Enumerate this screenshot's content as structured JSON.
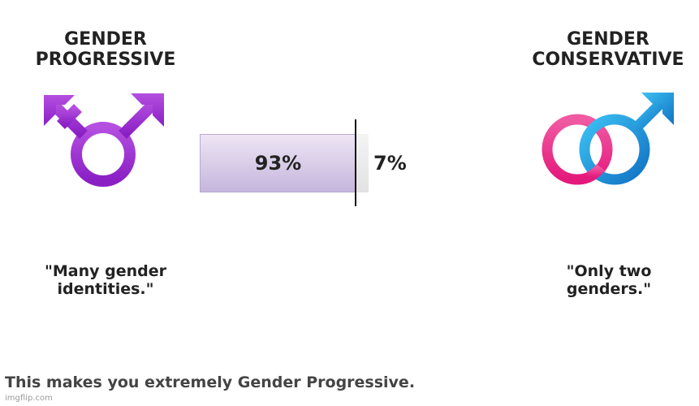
{
  "left": {
    "heading": "GENDER\nPROGRESSIVE",
    "heading_line1": "GENDER",
    "heading_line2": "PROGRESSIVE",
    "quote_line1": "\"Many gender",
    "quote_line2": "identities.\"",
    "icon": "transgender-symbol-icon",
    "color": "#9c2bd0"
  },
  "right": {
    "heading_line1": "GENDER",
    "heading_line2": "CONSERVATIVE",
    "quote_line1": "\"Only two",
    "quote_line2": "genders.\"",
    "icon": "male-female-symbol-icon",
    "female_color": "#ee2c8a",
    "male_color": "#1f9be0"
  },
  "meter": {
    "progressive_percent": 93,
    "progressive_label": "93%",
    "conservative_percent": 7,
    "conservative_label": "7%",
    "fill_color": "#c9bce0"
  },
  "result": {
    "text": "This makes you extremely Gender Progressive."
  },
  "watermark": {
    "text": "imgflip.com"
  }
}
